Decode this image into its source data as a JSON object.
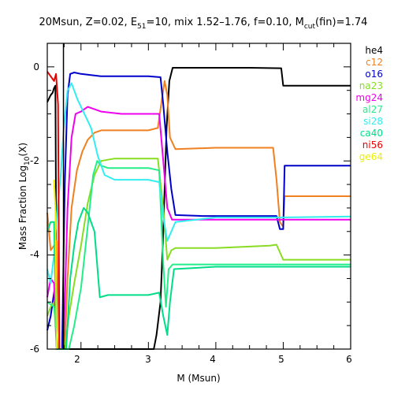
{
  "chart_data": {
    "type": "line",
    "title": {
      "main": "20Msun, Z=0.02, E",
      "e_sub": "51",
      "mid": "=10, mix 1.52–1.76, f=0.10, M",
      "m_sub": "cut",
      "tail": "(fin)=1.74"
    },
    "xlabel": "M (Msun)",
    "ylabel": {
      "main": "Mass Fraction Log",
      "sub": "10",
      "tail": "(X)"
    },
    "xlim": [
      1.5,
      6.0
    ],
    "ylim": [
      -6.0,
      0.5
    ],
    "x_tick_labels": [
      "2",
      "3",
      "4",
      "5",
      "6"
    ],
    "y_tick_labels": [
      "0",
      "-2",
      "-4",
      "-6"
    ],
    "grid": false,
    "legend_position": "right",
    "vertical_marker": {
      "x": 1.74,
      "color": "#000000"
    },
    "series": [
      {
        "name": "he4",
        "color": "#000000",
        "points": [
          [
            1.5,
            -0.75
          ],
          [
            1.55,
            -0.6
          ],
          [
            1.58,
            -0.55
          ],
          [
            1.6,
            -0.45
          ],
          [
            1.62,
            -0.4
          ],
          [
            1.64,
            -6.0
          ],
          [
            1.7,
            -6.0
          ],
          [
            3.08,
            -6.0
          ],
          [
            3.12,
            -5.7
          ],
          [
            3.18,
            -5.0
          ],
          [
            3.22,
            -3.5
          ],
          [
            3.27,
            -1.3
          ],
          [
            3.31,
            -0.3
          ],
          [
            3.36,
            -0.02
          ],
          [
            3.8,
            -0.02
          ],
          [
            4.5,
            -0.02
          ],
          [
            4.97,
            -0.03
          ],
          [
            5.0,
            -0.4
          ],
          [
            6.0,
            -0.4
          ]
        ]
      },
      {
        "name": "c12",
        "color": "#f08020",
        "points": [
          [
            1.5,
            -3.1
          ],
          [
            1.55,
            -3.9
          ],
          [
            1.6,
            -3.8
          ],
          [
            1.64,
            -3.7
          ],
          [
            1.68,
            -6.0
          ],
          [
            1.76,
            -6.0
          ],
          [
            1.8,
            -4.5
          ],
          [
            1.86,
            -3.0
          ],
          [
            1.94,
            -2.2
          ],
          [
            2.02,
            -1.8
          ],
          [
            2.1,
            -1.55
          ],
          [
            2.2,
            -1.4
          ],
          [
            2.3,
            -1.35
          ],
          [
            2.6,
            -1.35
          ],
          [
            3.0,
            -1.35
          ],
          [
            3.14,
            -1.3
          ],
          [
            3.2,
            -0.7
          ],
          [
            3.24,
            -0.3
          ],
          [
            3.28,
            -0.6
          ],
          [
            3.32,
            -1.5
          ],
          [
            3.4,
            -1.75
          ],
          [
            4.0,
            -1.72
          ],
          [
            4.85,
            -1.72
          ],
          [
            4.9,
            -2.4
          ],
          [
            4.95,
            -3.3
          ],
          [
            5.0,
            -3.4
          ],
          [
            5.02,
            -2.75
          ],
          [
            6.0,
            -2.75
          ]
        ]
      },
      {
        "name": "o16",
        "color": "#0000cc",
        "points": [
          [
            1.5,
            -5.6
          ],
          [
            1.55,
            -5.3
          ],
          [
            1.6,
            -4.8
          ],
          [
            1.62,
            -4.6
          ],
          [
            1.64,
            -6.0
          ],
          [
            1.72,
            -6.0
          ],
          [
            1.76,
            -2.5
          ],
          [
            1.8,
            -0.6
          ],
          [
            1.84,
            -0.15
          ],
          [
            1.9,
            -0.12
          ],
          [
            2.0,
            -0.15
          ],
          [
            2.3,
            -0.2
          ],
          [
            3.0,
            -0.2
          ],
          [
            3.18,
            -0.22
          ],
          [
            3.22,
            -0.8
          ],
          [
            3.28,
            -1.8
          ],
          [
            3.34,
            -2.6
          ],
          [
            3.4,
            -3.15
          ],
          [
            3.8,
            -3.17
          ],
          [
            4.9,
            -3.17
          ],
          [
            4.95,
            -3.45
          ],
          [
            5.0,
            -3.45
          ],
          [
            5.02,
            -2.1
          ],
          [
            6.0,
            -2.1
          ]
        ]
      },
      {
        "name": "na23",
        "color": "#88dd22",
        "points": [
          [
            1.5,
            -5.3
          ],
          [
            1.55,
            -5.1
          ],
          [
            1.6,
            -5.0
          ],
          [
            1.64,
            -6.0
          ],
          [
            1.76,
            -6.0
          ],
          [
            1.82,
            -5.3
          ],
          [
            1.9,
            -4.6
          ],
          [
            2.0,
            -3.8
          ],
          [
            2.1,
            -2.9
          ],
          [
            2.2,
            -2.3
          ],
          [
            2.3,
            -2.0
          ],
          [
            2.5,
            -1.95
          ],
          [
            3.0,
            -1.95
          ],
          [
            3.14,
            -1.95
          ],
          [
            3.22,
            -3.0
          ],
          [
            3.28,
            -4.1
          ],
          [
            3.34,
            -3.9
          ],
          [
            3.4,
            -3.85
          ],
          [
            4.0,
            -3.85
          ],
          [
            4.8,
            -3.8
          ],
          [
            4.9,
            -3.78
          ],
          [
            5.0,
            -4.1
          ],
          [
            6.0,
            -4.1
          ]
        ]
      },
      {
        "name": "mg24",
        "color": "#ee00ee",
        "points": [
          [
            1.5,
            -4.9
          ],
          [
            1.55,
            -4.5
          ],
          [
            1.6,
            -4.6
          ],
          [
            1.64,
            -6.0
          ],
          [
            1.74,
            -6.0
          ],
          [
            1.8,
            -3.0
          ],
          [
            1.86,
            -1.5
          ],
          [
            1.92,
            -1.0
          ],
          [
            2.0,
            -0.95
          ],
          [
            2.1,
            -0.85
          ],
          [
            2.2,
            -0.9
          ],
          [
            2.3,
            -0.95
          ],
          [
            2.6,
            -1.0
          ],
          [
            3.0,
            -1.0
          ],
          [
            3.16,
            -1.0
          ],
          [
            3.22,
            -2.0
          ],
          [
            3.28,
            -3.0
          ],
          [
            3.35,
            -3.25
          ],
          [
            4.0,
            -3.25
          ],
          [
            6.0,
            -3.25
          ]
        ]
      },
      {
        "name": "al27",
        "color": "#22ee88",
        "points": [
          [
            1.5,
            -5.0
          ],
          [
            1.6,
            -5.1
          ],
          [
            1.66,
            -6.0
          ],
          [
            1.82,
            -6.0
          ],
          [
            1.9,
            -5.5
          ],
          [
            2.0,
            -4.7
          ],
          [
            2.1,
            -3.4
          ],
          [
            2.18,
            -2.3
          ],
          [
            2.24,
            -2.0
          ],
          [
            2.3,
            -2.1
          ],
          [
            2.4,
            -2.15
          ],
          [
            3.0,
            -2.15
          ],
          [
            3.16,
            -2.2
          ],
          [
            3.22,
            -4.2
          ],
          [
            3.26,
            -5.1
          ],
          [
            3.3,
            -4.3
          ],
          [
            3.36,
            -4.2
          ],
          [
            4.0,
            -4.2
          ],
          [
            6.0,
            -4.2
          ]
        ]
      },
      {
        "name": "si28",
        "color": "#33eeee",
        "points": [
          [
            1.5,
            -4.3
          ],
          [
            1.55,
            -4.6
          ],
          [
            1.6,
            -4.0
          ],
          [
            1.64,
            -3.2
          ],
          [
            1.7,
            -2.3
          ],
          [
            1.74,
            -1.4
          ],
          [
            1.8,
            -0.5
          ],
          [
            1.86,
            -0.35
          ],
          [
            1.95,
            -0.7
          ],
          [
            2.05,
            -1.0
          ],
          [
            2.15,
            -1.3
          ],
          [
            2.25,
            -1.9
          ],
          [
            2.35,
            -2.3
          ],
          [
            2.5,
            -2.4
          ],
          [
            3.0,
            -2.4
          ],
          [
            3.16,
            -2.45
          ],
          [
            3.22,
            -3.2
          ],
          [
            3.28,
            -3.7
          ],
          [
            3.34,
            -3.5
          ],
          [
            3.4,
            -3.3
          ],
          [
            4.0,
            -3.2
          ],
          [
            4.9,
            -3.2
          ],
          [
            5.0,
            -3.2
          ],
          [
            6.0,
            -3.18
          ]
        ]
      },
      {
        "name": "ca40",
        "color": "#00dd88",
        "points": [
          [
            1.5,
            -3.5
          ],
          [
            1.55,
            -3.3
          ],
          [
            1.6,
            -3.3
          ],
          [
            1.64,
            -6.0
          ],
          [
            1.78,
            -6.0
          ],
          [
            1.84,
            -4.5
          ],
          [
            1.9,
            -3.8
          ],
          [
            1.96,
            -3.3
          ],
          [
            2.04,
            -3.0
          ],
          [
            2.1,
            -3.1
          ],
          [
            2.2,
            -3.5
          ],
          [
            2.28,
            -4.9
          ],
          [
            2.4,
            -4.85
          ],
          [
            3.0,
            -4.85
          ],
          [
            3.16,
            -4.8
          ],
          [
            3.22,
            -5.3
          ],
          [
            3.28,
            -5.7
          ],
          [
            3.32,
            -5.0
          ],
          [
            3.38,
            -4.3
          ],
          [
            4.0,
            -4.25
          ],
          [
            6.0,
            -4.25
          ]
        ]
      },
      {
        "name": "ni56",
        "color": "#ee0000",
        "points": [
          [
            1.5,
            -0.1
          ],
          [
            1.55,
            -0.2
          ],
          [
            1.6,
            -0.3
          ],
          [
            1.63,
            -0.15
          ],
          [
            1.66,
            -0.8
          ],
          [
            1.68,
            -6.0
          ]
        ]
      },
      {
        "name": "ge64",
        "color": "#eeee00",
        "points": [
          [
            1.6,
            -2.4
          ],
          [
            1.62,
            -3.0
          ],
          [
            1.63,
            -4.5
          ],
          [
            1.64,
            -6.0
          ]
        ]
      }
    ]
  }
}
